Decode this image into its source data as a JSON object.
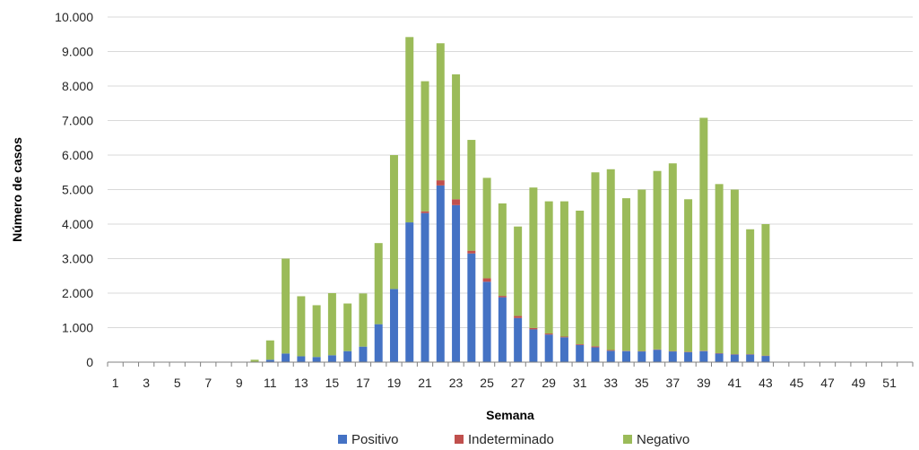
{
  "chart_data": {
    "type": "bar",
    "stacked": true,
    "title": "",
    "xlabel": "Semana",
    "ylabel": "Número de casos",
    "ylim": [
      0,
      10000
    ],
    "ytick_labels": [
      "0",
      "1.000",
      "2.000",
      "3.000",
      "4.000",
      "5.000",
      "6.000",
      "7.000",
      "8.000",
      "9.000",
      "10.000"
    ],
    "xtick_labels": [
      "1",
      "3",
      "5",
      "7",
      "9",
      "11",
      "13",
      "15",
      "17",
      "19",
      "21",
      "23",
      "25",
      "27",
      "29",
      "31",
      "33",
      "35",
      "37",
      "39",
      "41",
      "43",
      "45",
      "47",
      "49",
      "51"
    ],
    "grid": true,
    "legend_position": "bottom",
    "categories": [
      "1",
      "2",
      "3",
      "4",
      "5",
      "6",
      "7",
      "8",
      "9",
      "10",
      "11",
      "12",
      "13",
      "14",
      "15",
      "16",
      "17",
      "18",
      "19",
      "20",
      "21",
      "22",
      "23",
      "24",
      "25",
      "26",
      "27",
      "28",
      "29",
      "30",
      "31",
      "32",
      "33",
      "34",
      "35",
      "36",
      "37",
      "38",
      "39",
      "40",
      "41",
      "42",
      "43",
      "44",
      "45",
      "46",
      "47",
      "48",
      "49",
      "50",
      "51",
      "52"
    ],
    "series": [
      {
        "name": "Positivo",
        "color": "#4472C4",
        "values": [
          0,
          0,
          0,
          0,
          0,
          0,
          0,
          0,
          0,
          0,
          70,
          250,
          170,
          150,
          200,
          320,
          450,
          1100,
          2120,
          4050,
          4320,
          5120,
          4550,
          3150,
          2330,
          1880,
          1280,
          950,
          800,
          720,
          500,
          430,
          330,
          320,
          310,
          360,
          310,
          290,
          320,
          250,
          220,
          220,
          180,
          0,
          0,
          0,
          0,
          0,
          0,
          0,
          0,
          0
        ]
      },
      {
        "name": "Indeterminado",
        "color": "#C0504D",
        "values": [
          0,
          0,
          0,
          0,
          0,
          0,
          0,
          0,
          0,
          0,
          0,
          0,
          0,
          0,
          0,
          0,
          0,
          0,
          0,
          0,
          50,
          150,
          170,
          80,
          100,
          40,
          60,
          40,
          30,
          20,
          20,
          30,
          20,
          10,
          10,
          10,
          10,
          10,
          10,
          10,
          10,
          10,
          10,
          0,
          0,
          0,
          0,
          0,
          0,
          0,
          0,
          0
        ]
      },
      {
        "name": "Negativo",
        "color": "#9BBB59",
        "values": [
          0,
          0,
          0,
          0,
          0,
          0,
          0,
          0,
          0,
          70,
          560,
          2750,
          1740,
          1500,
          1800,
          1380,
          1540,
          2350,
          3880,
          5370,
          3770,
          3970,
          3620,
          3210,
          2910,
          2680,
          2590,
          4070,
          3830,
          3920,
          3870,
          5040,
          5240,
          4420,
          4680,
          5170,
          5440,
          4420,
          6750,
          4900,
          4770,
          3620,
          3810,
          0,
          0,
          0,
          0,
          0,
          0,
          0,
          0,
          0
        ]
      }
    ]
  }
}
